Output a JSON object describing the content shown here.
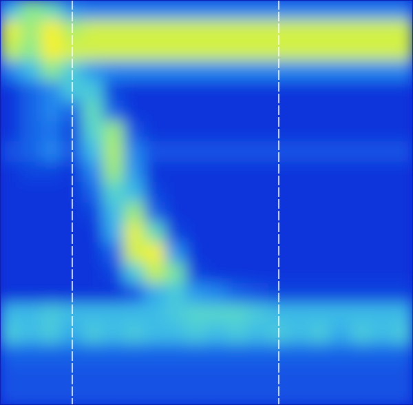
{
  "chart_data": {
    "type": "heatmap",
    "tick_labels": false,
    "xlim": [
      0,
      20
    ],
    "ylim": [
      0,
      20
    ],
    "zlim": [
      0,
      1
    ],
    "vlines": [
      3.5,
      13.5
    ],
    "cells": [
      [
        0.45,
        0.7,
        0.6,
        0.35,
        0.3,
        0.3,
        0.3,
        0.3,
        0.3,
        0.3,
        0.3,
        0.3,
        0.3,
        0.3,
        0.3,
        0.3,
        0.3,
        0.3,
        0.3,
        0.3
      ],
      [
        0.95,
        0.75,
        1.0,
        0.8,
        0.9,
        0.9,
        0.9,
        0.9,
        0.9,
        0.9,
        0.9,
        0.9,
        0.9,
        0.9,
        0.9,
        0.9,
        0.9,
        0.9,
        0.9,
        0.9
      ],
      [
        0.85,
        0.7,
        1.0,
        0.9,
        0.9,
        0.9,
        0.9,
        0.9,
        0.9,
        0.9,
        0.9,
        0.9,
        0.9,
        0.9,
        0.9,
        0.9,
        0.9,
        0.9,
        0.9,
        0.9
      ],
      [
        0.3,
        0.45,
        0.7,
        0.5,
        0.35,
        0.3,
        0.3,
        0.3,
        0.3,
        0.3,
        0.3,
        0.3,
        0.3,
        0.3,
        0.3,
        0.3,
        0.3,
        0.3,
        0.3,
        0.3
      ],
      [
        0.05,
        0.2,
        0.3,
        0.5,
        0.5,
        0.1,
        0.05,
        0.05,
        0.05,
        0.05,
        0.05,
        0.05,
        0.05,
        0.05,
        0.05,
        0.05,
        0.05,
        0.05,
        0.05,
        0.05
      ],
      [
        0.05,
        0.2,
        0.3,
        0.2,
        0.6,
        0.2,
        0.05,
        0.05,
        0.05,
        0.05,
        0.05,
        0.05,
        0.05,
        0.05,
        0.05,
        0.05,
        0.05,
        0.05,
        0.05,
        0.05
      ],
      [
        0.05,
        0.2,
        0.25,
        0.1,
        0.55,
        0.75,
        0.15,
        0.05,
        0.05,
        0.05,
        0.05,
        0.05,
        0.05,
        0.05,
        0.05,
        0.05,
        0.05,
        0.05,
        0.05,
        0.05
      ],
      [
        0.15,
        0.2,
        0.3,
        0.15,
        0.45,
        0.8,
        0.3,
        0.15,
        0.15,
        0.15,
        0.15,
        0.15,
        0.15,
        0.15,
        0.15,
        0.15,
        0.15,
        0.15,
        0.15,
        0.15
      ],
      [
        0.05,
        0.1,
        0.1,
        0.05,
        0.3,
        0.75,
        0.35,
        0.05,
        0.05,
        0.05,
        0.05,
        0.05,
        0.05,
        0.05,
        0.05,
        0.05,
        0.05,
        0.05,
        0.05,
        0.05
      ],
      [
        0.05,
        0.05,
        0.05,
        0.05,
        0.2,
        0.55,
        0.45,
        0.1,
        0.05,
        0.05,
        0.05,
        0.05,
        0.05,
        0.05,
        0.05,
        0.05,
        0.05,
        0.05,
        0.05,
        0.05
      ],
      [
        0.05,
        0.05,
        0.05,
        0.05,
        0.1,
        0.45,
        0.75,
        0.2,
        0.05,
        0.05,
        0.05,
        0.05,
        0.05,
        0.05,
        0.05,
        0.05,
        0.05,
        0.05,
        0.05,
        0.05
      ],
      [
        0.05,
        0.05,
        0.05,
        0.05,
        0.05,
        0.4,
        0.95,
        0.6,
        0.1,
        0.05,
        0.05,
        0.05,
        0.05,
        0.05,
        0.05,
        0.05,
        0.05,
        0.05,
        0.05,
        0.05
      ],
      [
        0.05,
        0.05,
        0.05,
        0.05,
        0.05,
        0.2,
        0.9,
        1.0,
        0.35,
        0.05,
        0.05,
        0.05,
        0.05,
        0.05,
        0.05,
        0.05,
        0.05,
        0.05,
        0.05,
        0.05
      ],
      [
        0.05,
        0.05,
        0.05,
        0.05,
        0.05,
        0.1,
        0.5,
        0.85,
        0.65,
        0.1,
        0.05,
        0.05,
        0.05,
        0.05,
        0.05,
        0.05,
        0.05,
        0.05,
        0.05,
        0.05
      ],
      [
        0.05,
        0.05,
        0.05,
        0.05,
        0.05,
        0.05,
        0.15,
        0.4,
        0.5,
        0.35,
        0.3,
        0.2,
        0.15,
        0.1,
        0.1,
        0.1,
        0.1,
        0.1,
        0.1,
        0.1
      ],
      [
        0.45,
        0.45,
        0.5,
        0.45,
        0.45,
        0.45,
        0.45,
        0.45,
        0.5,
        0.55,
        0.55,
        0.55,
        0.5,
        0.45,
        0.45,
        0.45,
        0.45,
        0.45,
        0.45,
        0.45
      ],
      [
        0.5,
        0.45,
        0.5,
        0.4,
        0.5,
        0.45,
        0.5,
        0.45,
        0.45,
        0.5,
        0.45,
        0.5,
        0.45,
        0.5,
        0.45,
        0.5,
        0.4,
        0.5,
        0.45,
        0.5
      ],
      [
        0.2,
        0.2,
        0.2,
        0.2,
        0.2,
        0.2,
        0.2,
        0.2,
        0.2,
        0.2,
        0.2,
        0.2,
        0.2,
        0.2,
        0.2,
        0.2,
        0.2,
        0.2,
        0.2,
        0.2
      ],
      [
        0.15,
        0.15,
        0.15,
        0.15,
        0.15,
        0.15,
        0.15,
        0.15,
        0.15,
        0.15,
        0.15,
        0.15,
        0.15,
        0.15,
        0.15,
        0.15,
        0.15,
        0.15,
        0.15,
        0.15
      ],
      [
        0.15,
        0.15,
        0.15,
        0.15,
        0.15,
        0.15,
        0.15,
        0.15,
        0.15,
        0.15,
        0.15,
        0.15,
        0.15,
        0.15,
        0.15,
        0.15,
        0.15,
        0.15,
        0.15,
        0.15
      ]
    ]
  }
}
